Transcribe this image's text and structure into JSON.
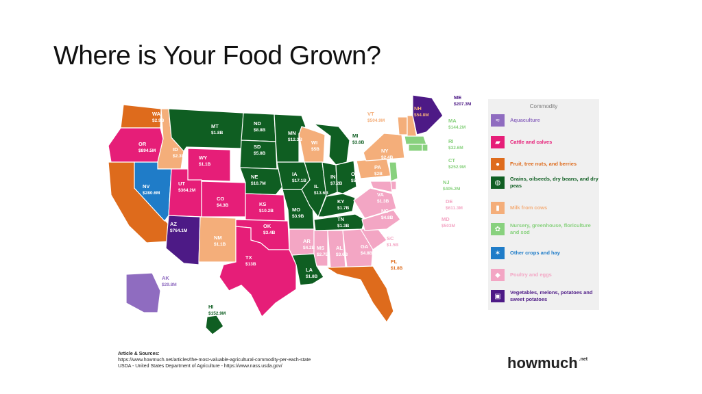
{
  "slide": {
    "title": "Where is Your Food Grown?"
  },
  "colors": {
    "aquaculture": "#8f6cc0",
    "cattle": "#e61e78",
    "fruit": "#de6b1c",
    "grains": "#0f5e22",
    "milk": "#f4ae7a",
    "nursery": "#88d17e",
    "other_crops": "#1f7cc8",
    "poultry": "#f3a6c4",
    "vegetables": "#4d1a86"
  },
  "states": [
    {
      "abbr": "WA",
      "value": "$2.9B",
      "commodity": "fruit"
    },
    {
      "abbr": "OR",
      "value": "$894.5M",
      "commodity": "cattle"
    },
    {
      "abbr": "CA",
      "value": "$17.6B",
      "commodity": "fruit"
    },
    {
      "abbr": "ID",
      "value": "$2.3B",
      "commodity": "milk"
    },
    {
      "abbr": "NV",
      "value": "$280.6M",
      "commodity": "other_crops"
    },
    {
      "abbr": "MT",
      "value": "$1.8B",
      "commodity": "grains"
    },
    {
      "abbr": "WY",
      "value": "$1.1B",
      "commodity": "cattle"
    },
    {
      "abbr": "UT",
      "value": "$364.2M",
      "commodity": "cattle"
    },
    {
      "abbr": "AZ",
      "value": "$764.1M",
      "commodity": "vegetables"
    },
    {
      "abbr": "CO",
      "value": "$4.3B",
      "commodity": "cattle"
    },
    {
      "abbr": "NM",
      "value": "$1.1B",
      "commodity": "milk"
    },
    {
      "abbr": "ND",
      "value": "$8.8B",
      "commodity": "grains"
    },
    {
      "abbr": "SD",
      "value": "$5.8B",
      "commodity": "grains"
    },
    {
      "abbr": "NE",
      "value": "$10.7M",
      "commodity": "grains"
    },
    {
      "abbr": "KS",
      "value": "$10.2B",
      "commodity": "cattle"
    },
    {
      "abbr": "OK",
      "value": "$3.4B",
      "commodity": "cattle"
    },
    {
      "abbr": "TX",
      "value": "$13B",
      "commodity": "cattle"
    },
    {
      "abbr": "MN",
      "value": "$12.3B",
      "commodity": "grains"
    },
    {
      "abbr": "IA",
      "value": "$17.1B",
      "commodity": "grains"
    },
    {
      "abbr": "MO",
      "value": "$3.9B",
      "commodity": "grains"
    },
    {
      "abbr": "AR",
      "value": "$4.2B",
      "commodity": "poultry"
    },
    {
      "abbr": "LA",
      "value": "$1.8B",
      "commodity": "grains"
    },
    {
      "abbr": "WI",
      "value": "$5B",
      "commodity": "milk"
    },
    {
      "abbr": "IL",
      "value": "$13.6B",
      "commodity": "grains"
    },
    {
      "abbr": "MI",
      "value": "$3.6B",
      "commodity": "grains"
    },
    {
      "abbr": "IN",
      "value": "$7.2B",
      "commodity": "grains"
    },
    {
      "abbr": "OH",
      "value": "$5.8B",
      "commodity": "grains"
    },
    {
      "abbr": "KY",
      "value": "$1.7B",
      "commodity": "grains"
    },
    {
      "abbr": "TN",
      "value": "$1.3B",
      "commodity": "grains"
    },
    {
      "abbr": "MS",
      "value": "$2.7B",
      "commodity": "poultry"
    },
    {
      "abbr": "AL",
      "value": "$3.6B",
      "commodity": "poultry"
    },
    {
      "abbr": "GA",
      "value": "$4.8B",
      "commodity": "poultry"
    },
    {
      "abbr": "FL",
      "value": "$1.8B",
      "commodity": "fruit"
    },
    {
      "abbr": "SC",
      "value": "$1.5B",
      "commodity": "poultry"
    },
    {
      "abbr": "NC",
      "value": "$4.8B",
      "commodity": "poultry"
    },
    {
      "abbr": "VA",
      "value": "$1.3B",
      "commodity": "poultry"
    },
    {
      "abbr": "PA",
      "value": "$2B",
      "commodity": "milk"
    },
    {
      "abbr": "NY",
      "value": "$2.4B",
      "commodity": "milk"
    },
    {
      "abbr": "VT",
      "value": "$504.9M",
      "commodity": "milk"
    },
    {
      "abbr": "NH",
      "value": "$54.8M",
      "commodity": "milk"
    },
    {
      "abbr": "ME",
      "value": "$207.3M",
      "commodity": "vegetables"
    },
    {
      "abbr": "MA",
      "value": "$144.2M",
      "commodity": "nursery"
    },
    {
      "abbr": "RI",
      "value": "$32.6M",
      "commodity": "nursery"
    },
    {
      "abbr": "CT",
      "value": "$252.9M",
      "commodity": "nursery"
    },
    {
      "abbr": "NJ",
      "value": "$405.2M",
      "commodity": "nursery"
    },
    {
      "abbr": "DE",
      "value": "$611.3M",
      "commodity": "poultry"
    },
    {
      "abbr": "MD",
      "value": "$503M",
      "commodity": "poultry"
    },
    {
      "abbr": "AK",
      "value": "$29.8M",
      "commodity": "aquaculture"
    },
    {
      "abbr": "HI",
      "value": "$152.9M",
      "commodity": "grains"
    }
  ],
  "legend": {
    "title": "Commodity",
    "items": [
      {
        "key": "aquaculture",
        "label": "Aquaculture"
      },
      {
        "key": "cattle",
        "label": "Cattle and calves"
      },
      {
        "key": "fruit",
        "label": "Fruit, tree nuts, and berries"
      },
      {
        "key": "grains",
        "label": "Grains, oilseeds, dry beans, and dry peas"
      },
      {
        "key": "milk",
        "label": "Milk from cows"
      },
      {
        "key": "nursery",
        "label": "Nursery, greenhouse, floriculture and sod"
      },
      {
        "key": "other_crops",
        "label": "Other crops and hay"
      },
      {
        "key": "poultry",
        "label": "Poultry and eggs"
      },
      {
        "key": "vegetables",
        "label": "Vegetables, melons, potatoes and sweet potatoes"
      }
    ]
  },
  "sources": {
    "heading": "Article & Sources:",
    "line1": "https://www.howmuch.net/articles/the-most-valuable-agricultural-commodity-per-each-state",
    "line2": "USDA - United States Department of Agriculture - https://www.nass.usda.gov/"
  },
  "brand": {
    "name": "howmuch",
    "suffix": ".net"
  }
}
